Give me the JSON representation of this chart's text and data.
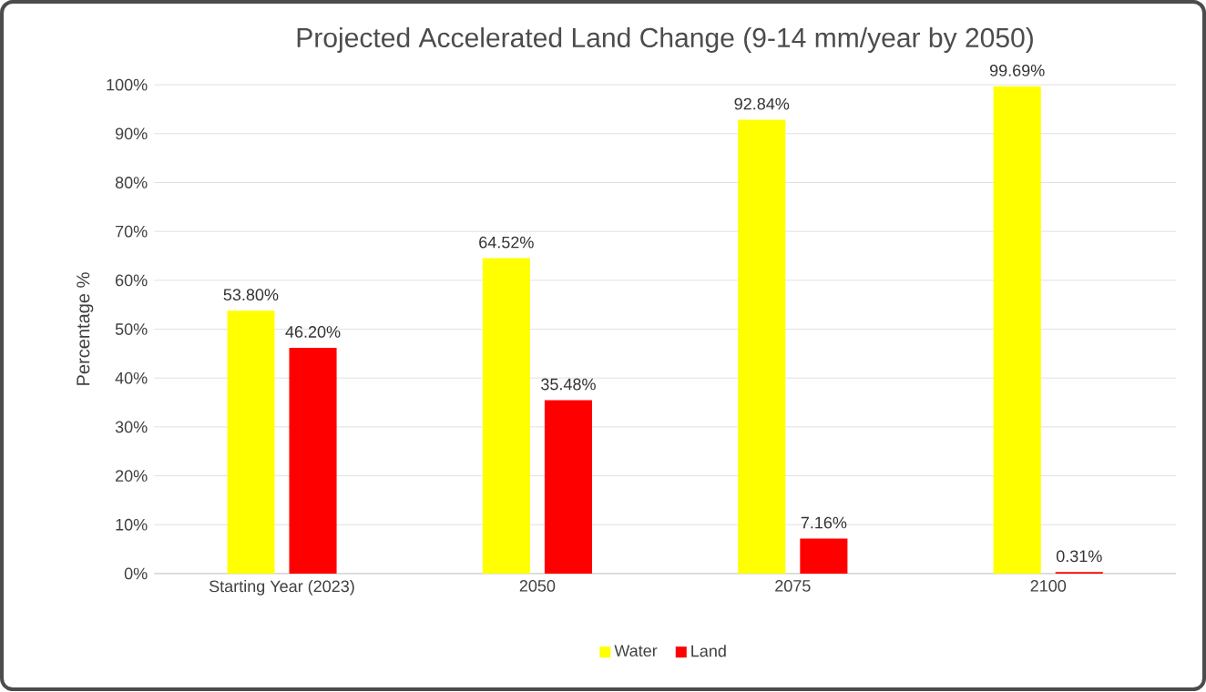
{
  "chart_data": {
    "type": "bar",
    "title": "Projected Accelerated Land Change (9-14 mm/year by 2050)",
    "ylabel": "Percentage %",
    "categories": [
      "Starting Year (2023)",
      "2050",
      "2075",
      "2100"
    ],
    "series": [
      {
        "name": "Water",
        "color": "#ffff00",
        "values": [
          53.8,
          64.52,
          92.84,
          99.69
        ],
        "value_labels": [
          "53.80%",
          "64.52%",
          "92.84%",
          "99.69%"
        ]
      },
      {
        "name": "Land",
        "color": "#ff0000",
        "values": [
          46.2,
          35.48,
          7.16,
          0.31
        ],
        "value_labels": [
          "46.20%",
          "35.48%",
          "7.16%",
          "0.31%"
        ]
      }
    ],
    "ylim": [
      0,
      100
    ],
    "yticks": [
      {
        "value": 0,
        "label": "0%"
      },
      {
        "value": 10,
        "label": "10%"
      },
      {
        "value": 20,
        "label": "20%"
      },
      {
        "value": 30,
        "label": "30%"
      },
      {
        "value": 40,
        "label": "40%"
      },
      {
        "value": 50,
        "label": "50%"
      },
      {
        "value": 60,
        "label": "60%"
      },
      {
        "value": 70,
        "label": "70%"
      },
      {
        "value": 80,
        "label": "80%"
      },
      {
        "value": 90,
        "label": "90%"
      },
      {
        "value": 100,
        "label": "100%"
      }
    ],
    "grid": "y",
    "legend": "bottom"
  }
}
